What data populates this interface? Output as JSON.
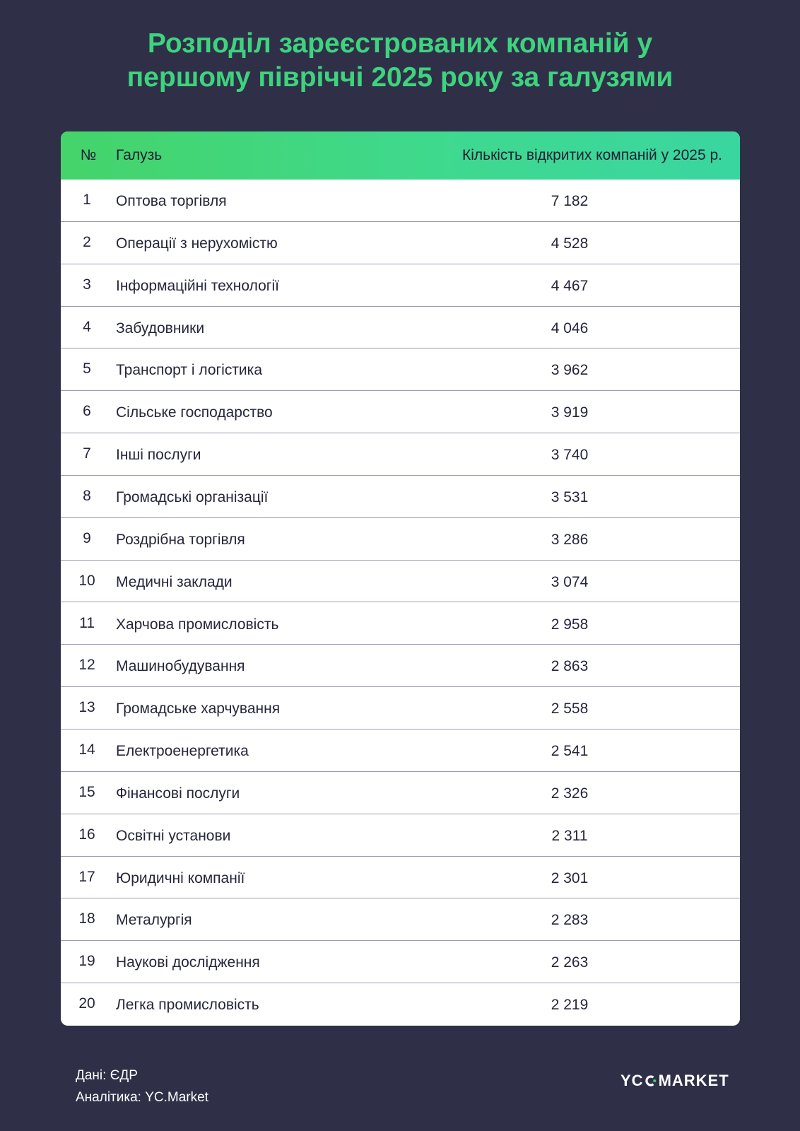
{
  "title_line1": "Розподіл зареєстрованих компаній у",
  "title_line2": "першому півріччі 2025 року за галузями",
  "table": {
    "header_num": "№",
    "header_industry": "Галузь",
    "header_value": "Кількість відкритих компаній у 2025 р."
  },
  "chart_data": {
    "type": "table",
    "title": "Розподіл зареєстрованих компаній у першому півріччі 2025 року за галузями",
    "columns": [
      "№",
      "Галузь",
      "Кількість відкритих компаній у 2025 р."
    ],
    "rows": [
      {
        "num": "1",
        "industry": "Оптова торгівля",
        "value": "7 182"
      },
      {
        "num": "2",
        "industry": "Операції з нерухомістю",
        "value": "4 528"
      },
      {
        "num": "3",
        "industry": "Інформаційні технології",
        "value": "4 467"
      },
      {
        "num": "4",
        "industry": "Забудовники",
        "value": "4 046"
      },
      {
        "num": "5",
        "industry": "Транспорт і логістика",
        "value": "3 962"
      },
      {
        "num": "6",
        "industry": "Сільське господарство",
        "value": "3 919"
      },
      {
        "num": "7",
        "industry": "Інші послуги",
        "value": "3 740"
      },
      {
        "num": "8",
        "industry": "Громадські організації",
        "value": "3 531"
      },
      {
        "num": "9",
        "industry": "Роздрібна торгівля",
        "value": "3 286"
      },
      {
        "num": "10",
        "industry": "Медичні заклади",
        "value": "3 074"
      },
      {
        "num": "11",
        "industry": "Харчова промисловість",
        "value": "2 958"
      },
      {
        "num": "12",
        "industry": "Машинобудування",
        "value": "2 863"
      },
      {
        "num": "13",
        "industry": "Громадське харчування",
        "value": "2 558"
      },
      {
        "num": "14",
        "industry": "Електроенергетика",
        "value": "2 541"
      },
      {
        "num": "15",
        "industry": "Фінансові послуги",
        "value": "2 326"
      },
      {
        "num": "16",
        "industry": "Освітні установи",
        "value": "2 311"
      },
      {
        "num": "17",
        "industry": "Юридичні компанії",
        "value": "2 301"
      },
      {
        "num": "18",
        "industry": "Металургія",
        "value": "2 283"
      },
      {
        "num": "19",
        "industry": "Наукові дослідження",
        "value": "2 263"
      },
      {
        "num": "20",
        "industry": "Легка промисловість",
        "value": "2 219"
      }
    ]
  },
  "footer": {
    "source": "Дані: ЄДР",
    "analytics": "Аналітика: YC.Market"
  },
  "logo": {
    "left": "YC",
    "right": "MARKET"
  },
  "colors": {
    "background": "#2f3048",
    "title": "#3ed37e",
    "header_green": "#3fd98e",
    "row_divider": "#9a9bb4"
  }
}
